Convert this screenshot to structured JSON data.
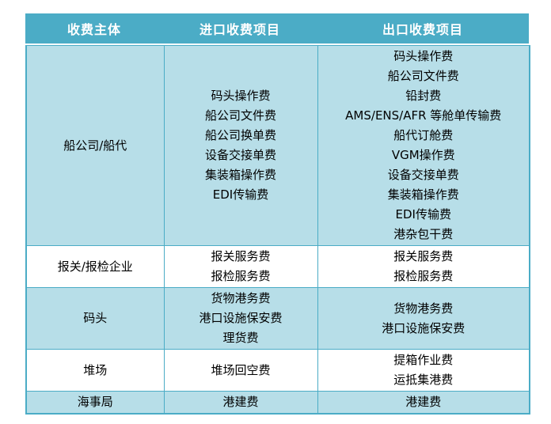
{
  "colors": {
    "header_bg": "#4BACC6",
    "header_text": "#FFFFFF",
    "band_bg": "#B7DEE8",
    "plain_bg": "#FFFFFF",
    "border": "#4BACC6",
    "body_text": "#000000"
  },
  "table": {
    "headers": [
      "收费主体",
      "进口收费项目",
      "出口收费项目"
    ],
    "rows": [
      {
        "subject": "船公司/船代",
        "import_items": [
          "码头操作费",
          "船公司文件费",
          "船公司换单费",
          "设备交接单费",
          "集装箱操作费",
          "EDI传输费"
        ],
        "export_items": [
          "码头操作费",
          "船公司文件费",
          "铅封费",
          "AMS/ENS/AFR 等舱单传输费",
          "船代订舱费",
          "VGM操作费",
          "设备交接单费",
          "集装箱操作费",
          "EDI传输费",
          "港杂包干费"
        ]
      },
      {
        "subject": "报关/报检企业",
        "import_items": [
          "报关服务费",
          "报检服务费"
        ],
        "export_items": [
          "报关服务费",
          "报检服务费"
        ]
      },
      {
        "subject": "码头",
        "import_items": [
          "货物港务费",
          "港口设施保安费",
          "理货费"
        ],
        "export_items": [
          "货物港务费",
          "港口设施保安费"
        ]
      },
      {
        "subject": "堆场",
        "import_items": [
          "堆场回空费"
        ],
        "export_items": [
          "提箱作业费",
          "运抵集港费"
        ]
      },
      {
        "subject": "海事局",
        "import_items": [
          "港建费"
        ],
        "export_items": [
          "港建费"
        ]
      }
    ]
  }
}
